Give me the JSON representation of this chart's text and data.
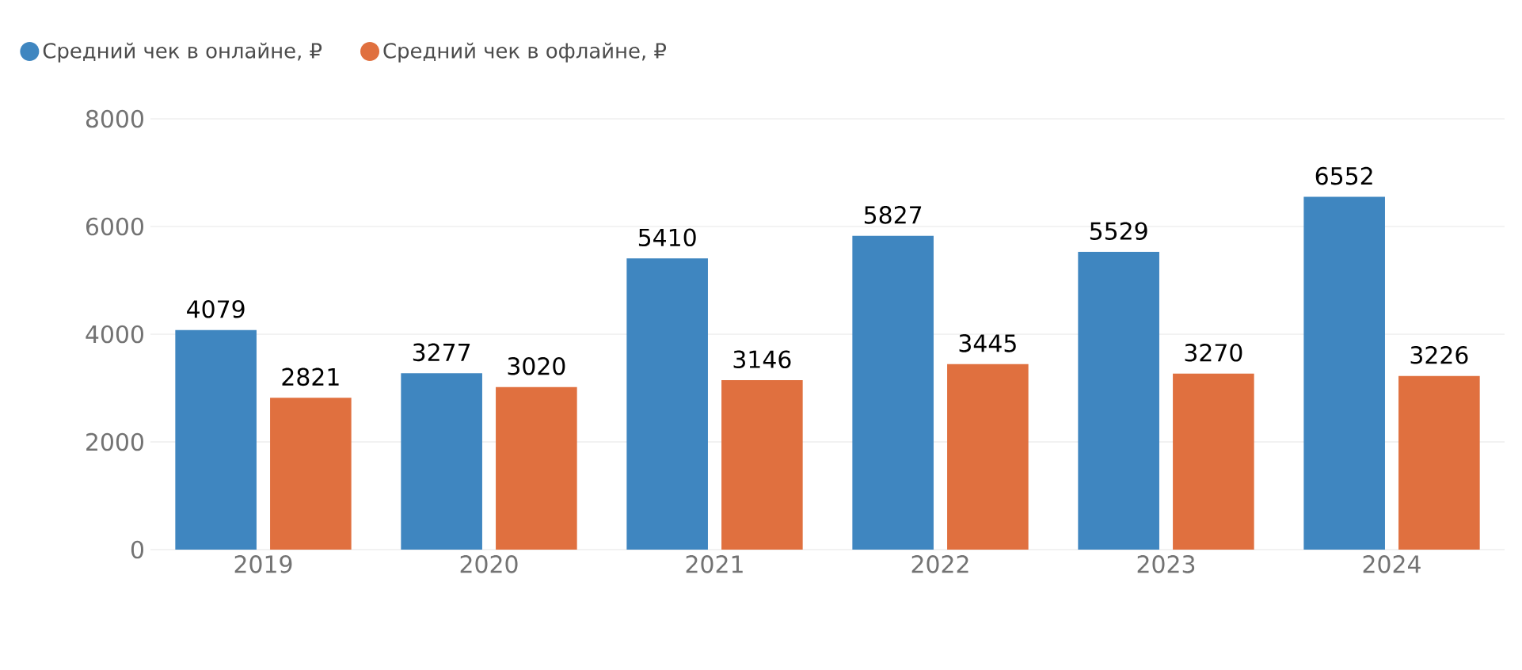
{
  "chart_data": {
    "type": "bar",
    "categories": [
      "2019",
      "2020",
      "2021",
      "2022",
      "2023",
      "2024"
    ],
    "series": [
      {
        "name": "Средний чек в онлайне, ₽",
        "color": "#3f86c0",
        "values": [
          4079,
          3277,
          5410,
          5827,
          5529,
          6552
        ]
      },
      {
        "name": "Средний чек в офлайне, ₽",
        "color": "#e0703f",
        "values": [
          2821,
          3020,
          3146,
          3445,
          3270,
          3226
        ]
      }
    ],
    "ylim": [
      0,
      8000
    ],
    "yticks": [
      0,
      2000,
      4000,
      6000,
      8000
    ],
    "grid": "y",
    "legend": "top left",
    "data_labels": true
  }
}
